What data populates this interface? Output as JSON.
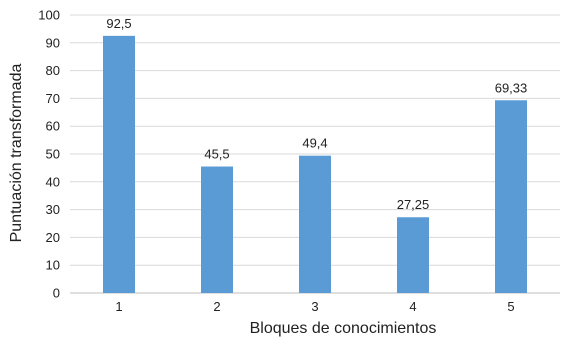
{
  "chart_data": {
    "type": "bar",
    "categories": [
      "1",
      "2",
      "3",
      "4",
      "5"
    ],
    "values": [
      92.5,
      45.5,
      49.4,
      27.25,
      69.33
    ],
    "data_labels": [
      "92,5",
      "45,5",
      "49,4",
      "27,25",
      "69,33"
    ],
    "xlabel": "Bloques de conocimientos",
    "ylabel": "Puntuación transformada",
    "ylim": [
      0,
      100
    ],
    "yticks": [
      0,
      10,
      20,
      30,
      40,
      50,
      60,
      70,
      80,
      90,
      100
    ],
    "grid": true,
    "legend": "none",
    "bar_color": "#5b9bd5",
    "grid_color": "#d9d9d9"
  }
}
